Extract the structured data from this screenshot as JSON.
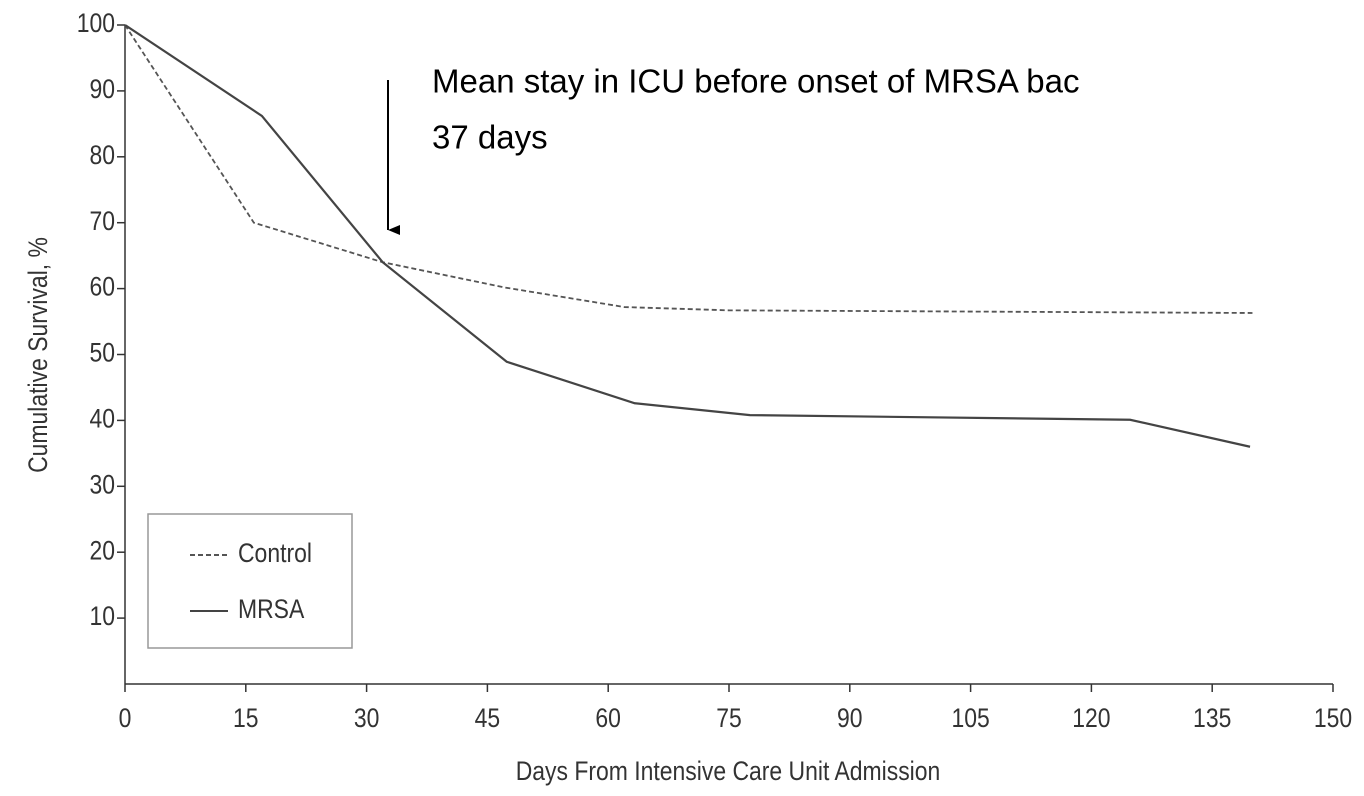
{
  "chart_data": {
    "type": "line",
    "annotation": [
      "Mean stay in ICU before onset of MRSA bac",
      "37 days"
    ],
    "x_label": "Days From Intensive Care Unit Admission",
    "y_label": "Cumulative Survival, %",
    "xlim": [
      0,
      150
    ],
    "xticks": [
      0,
      15,
      30,
      45,
      60,
      75,
      90,
      105,
      120,
      135,
      150
    ],
    "ylim": [
      0,
      100
    ],
    "yticks": [
      10,
      20,
      30,
      40,
      50,
      60,
      70,
      80,
      90,
      100
    ],
    "legend": "lower left",
    "series": [
      {
        "name": "Control",
        "color": "#555555",
        "style": "dashed",
        "x": [
          0,
          16,
          32,
          47,
          62,
          75,
          140
        ],
        "values": [
          100,
          70,
          64,
          60.2,
          57.2,
          56.7,
          56.3
        ]
      },
      {
        "name": "MRSA",
        "color": "#444444",
        "style": "solid",
        "x": [
          0,
          17,
          32,
          47.4,
          63.3,
          77.6,
          124.8,
          139.7
        ],
        "values": [
          100,
          86.2,
          64,
          48.9,
          42.6,
          40.8,
          40.1,
          36
        ]
      }
    ]
  }
}
